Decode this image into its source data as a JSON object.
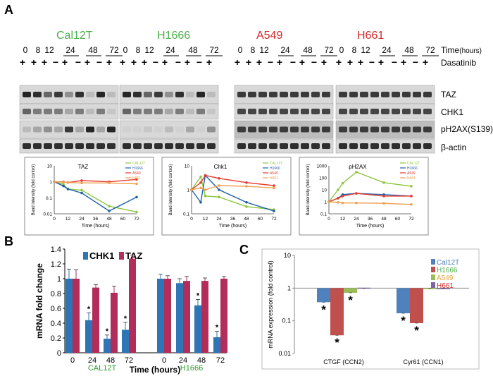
{
  "panel_a": {
    "letter": "A",
    "cell_lines": [
      {
        "name": "Cal12T",
        "color": "#4cae4c"
      },
      {
        "name": "H1666",
        "color": "#4cae4c"
      },
      {
        "name": "A549",
        "color": "#d62728"
      },
      {
        "name": "H661",
        "color": "#d62728"
      }
    ],
    "time_labels": [
      "0",
      "8",
      "12",
      "24",
      "48",
      "72"
    ],
    "time_label": "Time",
    "time_unit": "(hours)",
    "dasatinib_label": "Dasatinib",
    "blot_labels": [
      "TAZ",
      "CHK1",
      "pH2AX(S139)",
      "β-actin"
    ],
    "sign_rows": [
      [
        "+",
        "+",
        "+",
        "−",
        "+",
        "−",
        "+",
        "−",
        "+"
      ],
      [
        "+",
        "+",
        "+",
        "−",
        "+",
        "−",
        "+",
        "−",
        "+"
      ],
      [
        "+",
        "+",
        "+",
        "−",
        "+",
        "−",
        "+",
        "−",
        "+"
      ],
      [
        "+",
        "+",
        "+",
        "−",
        "+",
        "−",
        "+",
        "−",
        "+"
      ]
    ]
  },
  "chart_data": [
    {
      "type": "line",
      "title": "TAZ",
      "xlabel": "Time (hours)",
      "ylabel": "Band intensity (fold control)",
      "yscale": "log",
      "ylim": [
        0.01,
        10
      ],
      "xlim": [
        0,
        72
      ],
      "xticks": [
        "0",
        "12",
        "24",
        "36",
        "48",
        "60",
        "72"
      ],
      "yticks": [
        "0.01",
        "0.1",
        "1",
        "10"
      ],
      "x": [
        0,
        8,
        12,
        24,
        48,
        72
      ],
      "series": [
        {
          "name": "CAL12T",
          "color": "#8dc63f",
          "values": [
            1,
            0.7,
            0.35,
            0.3,
            0.03,
            0.013
          ]
        },
        {
          "name": "H1666",
          "color": "#1f5fa8",
          "values": [
            1,
            0.55,
            0.35,
            0.2,
            0.015,
            0.11
          ]
        },
        {
          "name": "A549",
          "color": "#e53b2c",
          "values": [
            1,
            1.0,
            0.9,
            1.2,
            1.0,
            1.4
          ]
        },
        {
          "name": "H661",
          "color": "#f0a050",
          "values": [
            1,
            0.95,
            0.9,
            0.85,
            0.85,
            0.75
          ]
        }
      ]
    },
    {
      "type": "line",
      "title": "Chk1",
      "xlabel": "Time (hours)",
      "ylabel": "Band intensity (fold control)",
      "yscale": "log",
      "ylim": [
        0.1,
        10
      ],
      "xlim": [
        0,
        72
      ],
      "xticks": [
        "0",
        "12",
        "24",
        "36",
        "48",
        "60",
        "72"
      ],
      "yticks": [
        "0.1",
        "1",
        "10"
      ],
      "x": [
        0,
        8,
        12,
        24,
        48,
        72
      ],
      "series": [
        {
          "name": "CAL12T",
          "color": "#8dc63f",
          "values": [
            1,
            3.5,
            0.55,
            0.5,
            0.2,
            0.15
          ]
        },
        {
          "name": "H1666",
          "color": "#1f5fa8",
          "values": [
            1,
            0.3,
            4.0,
            1.0,
            0.3,
            0.13
          ]
        },
        {
          "name": "A549",
          "color": "#e53b2c",
          "values": [
            1,
            2.0,
            4.0,
            3.0,
            2.0,
            1.5
          ]
        },
        {
          "name": "H661",
          "color": "#f0a050",
          "values": [
            1,
            1.2,
            1.0,
            1.5,
            1.4,
            1.2
          ]
        }
      ]
    },
    {
      "type": "line",
      "title": "pH2AX",
      "xlabel": "Time (hours)",
      "ylabel": "Band intensity (fold control)",
      "yscale": "log",
      "ylim": [
        0.1,
        1000
      ],
      "xlim": [
        0,
        72
      ],
      "xticks": [
        "0",
        "12",
        "24",
        "36",
        "48",
        "60",
        "72"
      ],
      "yticks": [
        "0.1",
        "1",
        "10",
        "100",
        "1000"
      ],
      "x": [
        0,
        8,
        12,
        24,
        48,
        72
      ],
      "series": [
        {
          "name": "CAL12T",
          "color": "#8dc63f",
          "values": [
            1,
            10,
            35,
            300,
            40,
            20
          ]
        },
        {
          "name": "H1666",
          "color": "#1f5fa8",
          "values": [
            1,
            2,
            4,
            5,
            4,
            3
          ]
        },
        {
          "name": "A549",
          "color": "#e53b2c",
          "values": [
            1,
            2,
            3,
            5,
            3,
            3
          ]
        },
        {
          "name": "H661",
          "color": "#f0a050",
          "values": [
            1,
            0.9,
            0.8,
            0.8,
            0.75,
            0.6
          ]
        }
      ]
    },
    {
      "type": "bar",
      "ylabel": "mRNA fold change",
      "xlabel": "Time (hours)",
      "ylim": [
        0,
        1.4
      ],
      "yticks": [
        "0",
        "0.2",
        "0.4",
        "0.6",
        "0.8",
        "1",
        "1.2",
        "1.4"
      ],
      "groups": [
        {
          "name": "CAL12T",
          "categories": [
            "0",
            "24",
            "48",
            "72"
          ]
        },
        {
          "name": "H1666",
          "categories": [
            "0",
            "24",
            "48",
            "72"
          ]
        }
      ],
      "series": [
        {
          "name": "CHK1",
          "color": "#2e75b6",
          "values": [
            1.0,
            0.44,
            0.19,
            0.31,
            1.0,
            0.94,
            0.64,
            0.21
          ],
          "errors": [
            0.13,
            0.1,
            0.05,
            0.1,
            0.06,
            0.06,
            0.08,
            0.08
          ]
        },
        {
          "name": "TAZ",
          "color": "#b22d5a",
          "values": [
            1.0,
            0.88,
            0.81,
            1.27,
            1.0,
            0.97,
            0.97,
            1.0
          ],
          "errors": [
            0.12,
            0.04,
            0.09,
            0.05,
            0.04,
            0.06,
            0.04,
            0.03
          ]
        }
      ],
      "star_label": "*",
      "stars": [
        1,
        2,
        3,
        6,
        7
      ]
    },
    {
      "type": "bar",
      "ylabel": "mRNA expression (fold control)",
      "yscale": "log",
      "ylim": [
        0.01,
        10
      ],
      "yticks": [
        "0.01",
        "0.1",
        "1",
        "10"
      ],
      "categories": [
        "CTGF (CCN2)",
        "Cyr61 (CCN1)"
      ],
      "series": [
        {
          "name": "Cal12T",
          "color": "#4f81bd",
          "label_color": "#4f81bd",
          "values": [
            0.37,
            0.17
          ]
        },
        {
          "name": "H1666",
          "color": "#c0504d",
          "label_color": "#4cae4c",
          "values": [
            0.036,
            0.085
          ]
        },
        {
          "name": "A549",
          "color": "#9bbb59",
          "label_color": "#e8a23c",
          "values": [
            0.72,
            1.0
          ]
        },
        {
          "name": "H661",
          "color": "#8064a2",
          "label_color": "#d62728",
          "values": [
            1.03,
            0.99
          ]
        }
      ],
      "star_label": "*"
    }
  ],
  "panel_b": {
    "letter": "B"
  },
  "panel_c": {
    "letter": "C"
  }
}
